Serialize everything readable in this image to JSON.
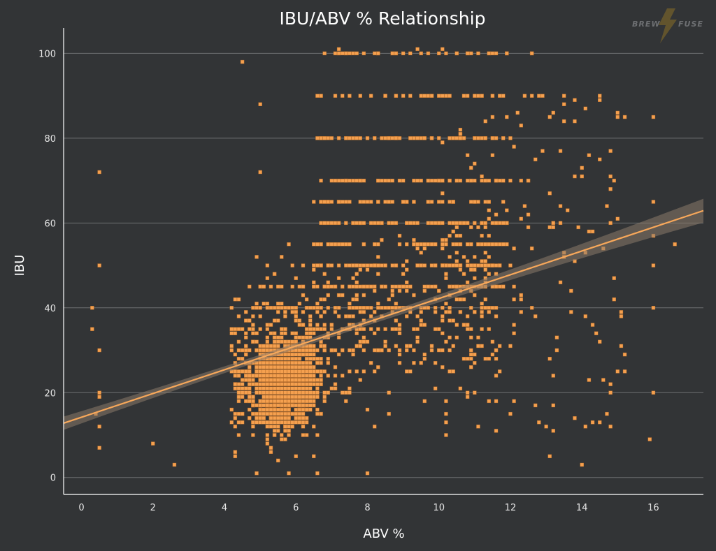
{
  "logo": {
    "text_left": "BREW",
    "text_right": "FUSE"
  },
  "chart_data": {
    "type": "scatter",
    "title": "IBU/ABV % Relationship",
    "xlabel": "ABV %",
    "ylabel": "IBU",
    "xlim": [
      -0.5,
      17.4
    ],
    "ylim": [
      -4,
      106
    ],
    "x_ticks": [
      0,
      2,
      4,
      6,
      8,
      10,
      12,
      14,
      16
    ],
    "y_ticks": [
      0,
      20,
      40,
      60,
      80,
      100
    ],
    "grid": "horizontal",
    "legend": "none",
    "colors": {
      "background": "#323436",
      "point": "#f5a04f",
      "trend": "#f8a85a",
      "band": "#8a7a6a",
      "grid": "#6e7072"
    },
    "trend_line": {
      "intercept": 14.2,
      "slope": 2.8,
      "ci_halfwidth_at_ends": 2.8,
      "ci_halfwidth_at_center": 0.7,
      "center_x": 6.5
    },
    "points_note": "approximately 2,400 beers, reconstructed distribution",
    "cluster": {
      "abv_center": 5.6,
      "ibu_center": 25
    },
    "outliers": [
      [
        0.3,
        40
      ],
      [
        0.3,
        35
      ],
      [
        0.4,
        15
      ],
      [
        0.5,
        72
      ],
      [
        0.5,
        50
      ],
      [
        0.5,
        30
      ],
      [
        0.5,
        20
      ],
      [
        0.5,
        19
      ],
      [
        0.5,
        12
      ],
      [
        0.5,
        7
      ],
      [
        2.0,
        8
      ],
      [
        2.6,
        3
      ],
      [
        4.5,
        98
      ],
      [
        5.0,
        88
      ],
      [
        5.0,
        72
      ],
      [
        7.2,
        101
      ],
      [
        9.4,
        101
      ],
      [
        10.1,
        101
      ],
      [
        13.5,
        88
      ],
      [
        15.0,
        85
      ],
      [
        16.0,
        85
      ],
      [
        16.0,
        65
      ],
      [
        16.0,
        57
      ],
      [
        16.0,
        50
      ],
      [
        16.0,
        40
      ],
      [
        16.0,
        20
      ],
      [
        15.9,
        9
      ],
      [
        16.6,
        55
      ],
      [
        14.0,
        3
      ],
      [
        13.1,
        5
      ],
      [
        4.9,
        1
      ],
      [
        5.8,
        1
      ],
      [
        6.6,
        1
      ],
      [
        8.0,
        1
      ]
    ]
  }
}
